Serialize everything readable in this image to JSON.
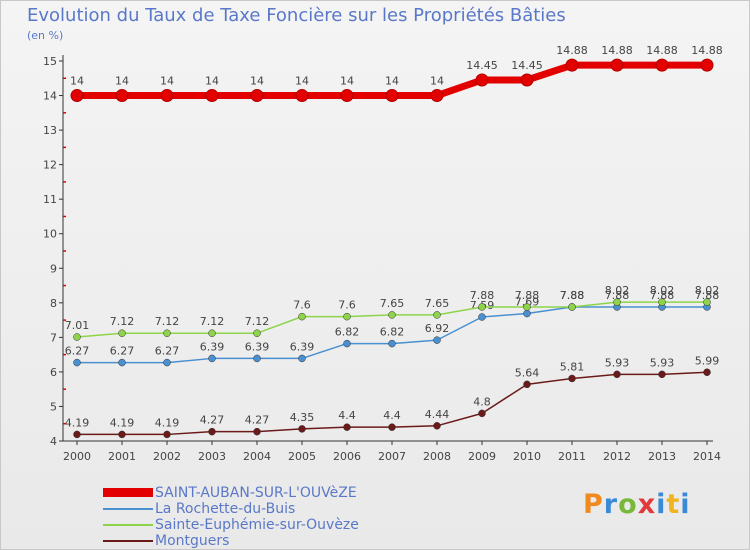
{
  "chart_data": {
    "type": "line",
    "title": "Evolution du Taux de Taxe Foncière sur les Propriétés Bâties",
    "ylabel": "(en %)",
    "xlabel": "",
    "x": [
      "2000",
      "2001",
      "2002",
      "2003",
      "2004",
      "2005",
      "2006",
      "2007",
      "2008",
      "2009",
      "2010",
      "2011",
      "2012",
      "2013",
      "2014"
    ],
    "yticks": [
      4,
      5,
      6,
      7,
      8,
      9,
      10,
      11,
      12,
      13,
      14,
      15
    ],
    "ylim": [
      4,
      15
    ],
    "grid": false,
    "legend_position": "bottom-left",
    "series": [
      {
        "name": "SAINT-AUBAN-SUR-L'OUVèZE",
        "color": "#e30000",
        "values": [
          14,
          14,
          14,
          14,
          14,
          14,
          14,
          14,
          14,
          14.45,
          14.45,
          14.88,
          14.88,
          14.88,
          14.88
        ],
        "labels": [
          "14",
          "14",
          "14",
          "14",
          "14",
          "14",
          "14",
          "14",
          "14",
          "14.45",
          "14.45",
          "14.88",
          "14.88",
          "14.88",
          "14.88"
        ]
      },
      {
        "name": "La Rochette-du-Buis",
        "color": "#4a90d0",
        "values": [
          6.27,
          6.27,
          6.27,
          6.39,
          6.39,
          6.39,
          6.82,
          6.82,
          6.92,
          7.59,
          7.69,
          7.88,
          7.88,
          7.88,
          7.88
        ],
        "labels": [
          "6.27",
          "6.27",
          "6.27",
          "6.39",
          "6.39",
          "6.39",
          "6.82",
          "6.82",
          "6.92",
          "7.59",
          "7.69",
          "7.88",
          "7.88",
          "7.88",
          "7.88"
        ]
      },
      {
        "name": "Sainte-Euphémie-sur-Ouvèze",
        "color": "#8ed44a",
        "values": [
          7.01,
          7.12,
          7.12,
          7.12,
          7.12,
          7.6,
          7.6,
          7.65,
          7.65,
          7.88,
          7.88,
          7.88,
          8.02,
          8.02,
          8.02
        ],
        "labels": [
          "7.01",
          "7.12",
          "7.12",
          "7.12",
          "7.12",
          "7.6",
          "7.6",
          "7.65",
          "7.65",
          "7.88",
          "7.88",
          "7.88",
          "8.02",
          "8.02",
          "8.02"
        ]
      },
      {
        "name": "Montguers",
        "color": "#6b1a1a",
        "values": [
          4.19,
          4.19,
          4.19,
          4.27,
          4.27,
          4.35,
          4.4,
          4.4,
          4.44,
          4.8,
          5.64,
          5.81,
          5.93,
          5.93,
          5.99
        ],
        "labels": [
          "4.19",
          "4.19",
          "4.19",
          "4.27",
          "4.27",
          "4.35",
          "4.4",
          "4.4",
          "4.44",
          "4.8",
          "5.64",
          "5.81",
          "5.93",
          "5.93",
          "5.99"
        ]
      }
    ]
  },
  "legend": {
    "items": [
      "SAINT-AUBAN-SUR-L'OUVèZE",
      "La Rochette-du-Buis",
      "Sainte-Euphémie-sur-Ouvèze",
      "Montguers"
    ]
  },
  "brand": {
    "letters": [
      "P",
      "r",
      "o",
      "x",
      "i",
      "t",
      "i"
    ]
  }
}
